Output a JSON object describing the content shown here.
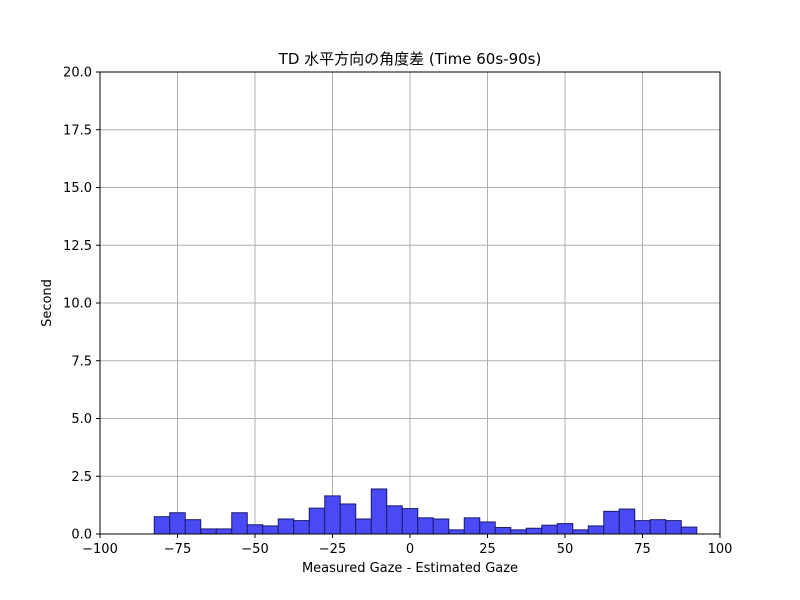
{
  "chart_data": {
    "type": "bar",
    "title": "TD 水平方向の角度差 (Time 60s-90s)",
    "xlabel": "Measured Gaze - Estimated Gaze",
    "ylabel": "Second",
    "xlim": [
      -100,
      100
    ],
    "ylim": [
      0,
      20
    ],
    "x_ticks": [
      "−100",
      "−75",
      "−50",
      "−25",
      "0",
      "25",
      "50",
      "75",
      "100"
    ],
    "y_ticks": [
      "0.0",
      "2.5",
      "5.0",
      "7.5",
      "10.0",
      "12.5",
      "15.0",
      "17.5",
      "20.0"
    ],
    "grid": true,
    "bar_color": "#4a4af5",
    "bar_edge_color": "#1a1a6e",
    "bins": [
      {
        "x0": -82.5,
        "x1": -77.5,
        "value": 0.75
      },
      {
        "x0": -77.5,
        "x1": -72.5,
        "value": 0.92
      },
      {
        "x0": -72.5,
        "x1": -67.5,
        "value": 0.62
      },
      {
        "x0": -67.5,
        "x1": -62.5,
        "value": 0.22
      },
      {
        "x0": -62.5,
        "x1": -57.5,
        "value": 0.22
      },
      {
        "x0": -57.5,
        "x1": -52.5,
        "value": 0.92
      },
      {
        "x0": -52.5,
        "x1": -47.5,
        "value": 0.4
      },
      {
        "x0": -47.5,
        "x1": -42.5,
        "value": 0.35
      },
      {
        "x0": -42.5,
        "x1": -37.5,
        "value": 0.65
      },
      {
        "x0": -37.5,
        "x1": -32.5,
        "value": 0.58
      },
      {
        "x0": -32.5,
        "x1": -27.5,
        "value": 1.12
      },
      {
        "x0": -27.5,
        "x1": -22.5,
        "value": 1.65
      },
      {
        "x0": -22.5,
        "x1": -17.5,
        "value": 1.3
      },
      {
        "x0": -17.5,
        "x1": -12.5,
        "value": 0.65
      },
      {
        "x0": -12.5,
        "x1": -7.5,
        "value": 1.95
      },
      {
        "x0": -7.5,
        "x1": -2.5,
        "value": 1.22
      },
      {
        "x0": -2.5,
        "x1": 2.5,
        "value": 1.1
      },
      {
        "x0": 2.5,
        "x1": 7.5,
        "value": 0.7
      },
      {
        "x0": 7.5,
        "x1": 12.5,
        "value": 0.65
      },
      {
        "x0": 12.5,
        "x1": 17.5,
        "value": 0.18
      },
      {
        "x0": 17.5,
        "x1": 22.5,
        "value": 0.7
      },
      {
        "x0": 22.5,
        "x1": 27.5,
        "value": 0.52
      },
      {
        "x0": 27.5,
        "x1": 32.5,
        "value": 0.28
      },
      {
        "x0": 32.5,
        "x1": 37.5,
        "value": 0.18
      },
      {
        "x0": 37.5,
        "x1": 42.5,
        "value": 0.25
      },
      {
        "x0": 42.5,
        "x1": 47.5,
        "value": 0.38
      },
      {
        "x0": 47.5,
        "x1": 52.5,
        "value": 0.45
      },
      {
        "x0": 52.5,
        "x1": 57.5,
        "value": 0.18
      },
      {
        "x0": 57.5,
        "x1": 62.5,
        "value": 0.35
      },
      {
        "x0": 62.5,
        "x1": 67.5,
        "value": 0.98
      },
      {
        "x0": 67.5,
        "x1": 72.5,
        "value": 1.08
      },
      {
        "x0": 72.5,
        "x1": 77.5,
        "value": 0.58
      },
      {
        "x0": 77.5,
        "x1": 82.5,
        "value": 0.62
      },
      {
        "x0": 82.5,
        "x1": 87.5,
        "value": 0.58
      },
      {
        "x0": 87.5,
        "x1": 92.5,
        "value": 0.3
      }
    ]
  }
}
